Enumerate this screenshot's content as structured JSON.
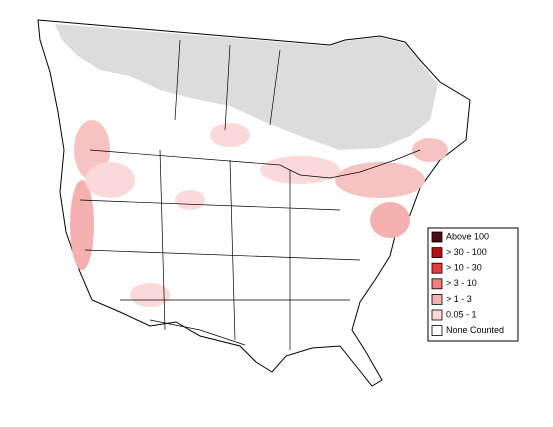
{
  "legend": {
    "items": [
      {
        "label": "Above 100",
        "color": "#4a0c0c"
      },
      {
        "label": "> 30 - 100",
        "color": "#b80f0f"
      },
      {
        "label": "> 10 - 30",
        "color": "#e83a3a"
      },
      {
        "label": "> 3 - 10",
        "color": "#f07d7d"
      },
      {
        "label": "> 1 - 3",
        "color": "#f5b0b0"
      },
      {
        "label": "0.05 - 1",
        "color": "#fcd9d9"
      },
      {
        "label": "None Counted",
        "color": "#ffffff"
      }
    ]
  }
}
